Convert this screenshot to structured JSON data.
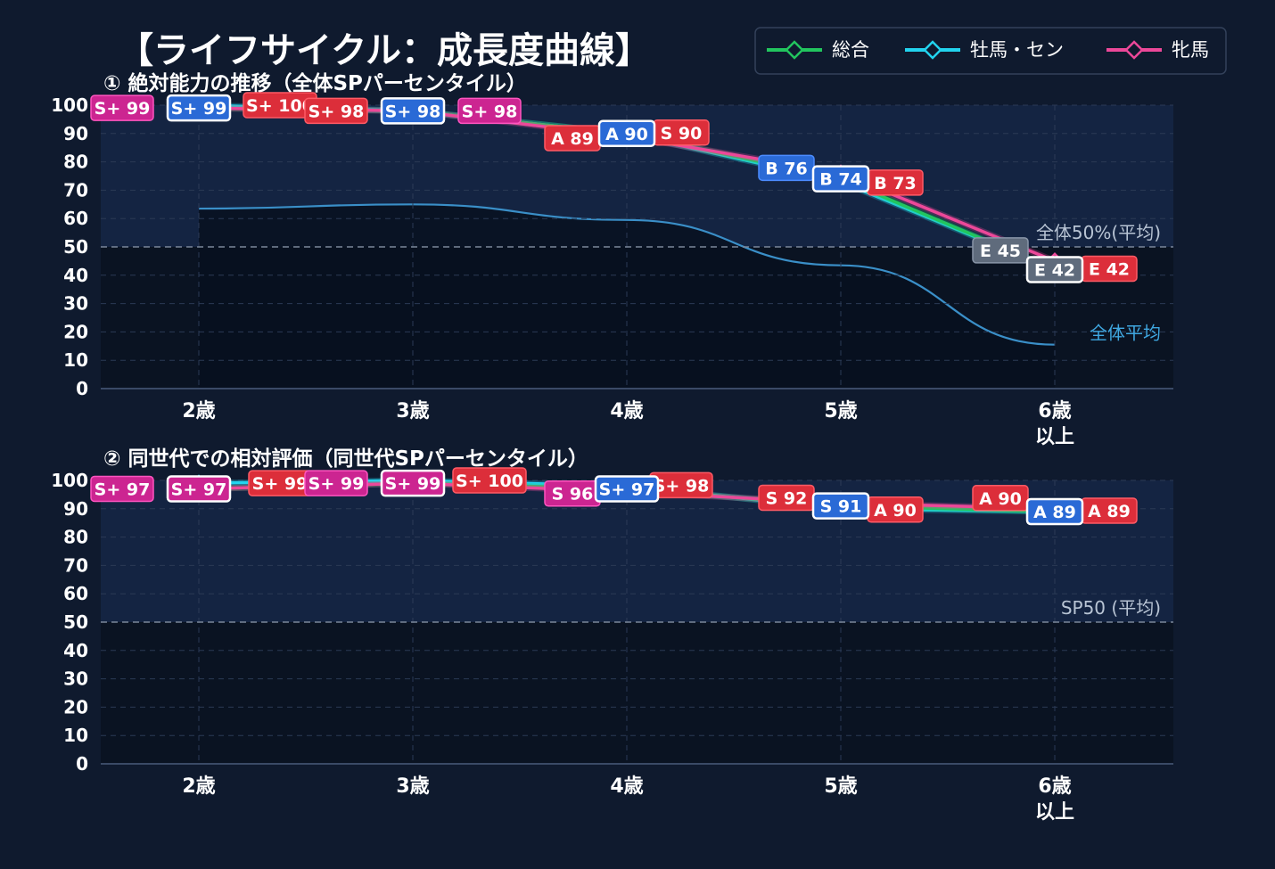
{
  "title": "【ライフサイクル：成長度曲線】",
  "colors": {
    "background": "#0f1a2e",
    "plot_upper": "#142442",
    "plot_lower": "#0a1322",
    "grid": "#2b3a55",
    "total": "#22c55e",
    "male": "#22d3ee",
    "female": "#ec4899",
    "avg_curve": "#3a8fc8",
    "label_red": "#dc2e3a",
    "label_magenta": "#cc2591",
    "label_blue": "#2a6ad6",
    "label_gray": "#5f6b7c"
  },
  "legend": {
    "placement": "top-right",
    "items": [
      {
        "name": "総合",
        "color": "#22c55e"
      },
      {
        "name": "牡馬・セン",
        "color": "#22d3ee"
      },
      {
        "name": "牝馬",
        "color": "#ec4899"
      }
    ]
  },
  "chart_data": [
    {
      "type": "line",
      "title": "① 絶対能力の推移（全体SPパーセンタイル）",
      "categories": [
        "2歳",
        "3歳",
        "4歳",
        "5歳",
        "6歳\n以上"
      ],
      "ylim": [
        0,
        100
      ],
      "yticks": [
        0,
        10,
        20,
        30,
        40,
        50,
        60,
        70,
        80,
        90,
        100
      ],
      "grid": true,
      "series": [
        {
          "name": "総合",
          "values": [
            99,
            98,
            90,
            74,
            42
          ],
          "labels": [
            "S+ 99",
            "S+ 98",
            "A 90",
            "B 74",
            "E 42"
          ]
        },
        {
          "name": "牡馬・セン",
          "values": [
            100,
            98,
            90,
            73,
            42
          ],
          "labels": [
            "S+ 100",
            "S+ 98",
            "S 90",
            "B 73",
            "E 42"
          ]
        },
        {
          "name": "牝馬",
          "values": [
            99,
            98,
            89,
            76,
            45
          ],
          "labels": [
            "S+ 99",
            "S+ 98",
            "A 89",
            "B 76",
            "E 45"
          ]
        }
      ],
      "label_tiers": [
        [
          "magenta",
          "blue",
          "red"
        ],
        [
          "red",
          "blue",
          "magenta"
        ],
        [
          "red",
          "blue",
          "red"
        ],
        [
          "blue",
          "blue",
          "red"
        ],
        [
          "gray",
          "gray",
          "red"
        ]
      ],
      "reference": {
        "y": 50,
        "label": "全体50%(平均)"
      },
      "average_curve": {
        "label": "全体平均",
        "values": [
          63.5,
          65,
          59.5,
          43.5,
          15.5
        ]
      }
    },
    {
      "type": "line",
      "title": "② 同世代での相対評価（同世代SPパーセンタイル）",
      "categories": [
        "2歳",
        "3歳",
        "4歳",
        "5歳",
        "6歳\n以上"
      ],
      "ylim": [
        0,
        100
      ],
      "yticks": [
        0,
        10,
        20,
        30,
        40,
        50,
        60,
        70,
        80,
        90,
        100
      ],
      "grid": true,
      "series": [
        {
          "name": "総合",
          "values": [
            97,
            99,
            97,
            91,
            89
          ],
          "labels": [
            "S+ 97",
            "S+ 99",
            "S+ 97",
            "S 91",
            "A 89"
          ]
        },
        {
          "name": "牡馬・セン",
          "values": [
            99,
            100,
            98,
            90,
            89
          ],
          "labels": [
            "S+ 99",
            "S+ 100",
            "S+ 98",
            "A 90",
            "A 89"
          ]
        },
        {
          "name": "牝馬",
          "values": [
            97,
            99,
            96,
            92,
            90
          ],
          "labels": [
            "S+ 97",
            "S+ 99",
            "S 96",
            "S 92",
            "A 90"
          ]
        }
      ],
      "label_tiers": [
        [
          "magenta",
          "magenta",
          "red"
        ],
        [
          "magenta",
          "magenta",
          "red"
        ],
        [
          "magenta",
          "blue",
          "red"
        ],
        [
          "red",
          "blue",
          "red"
        ],
        [
          "red",
          "blue",
          "red"
        ]
      ],
      "reference": {
        "y": 50,
        "label": "SP50 (平均)"
      }
    }
  ]
}
